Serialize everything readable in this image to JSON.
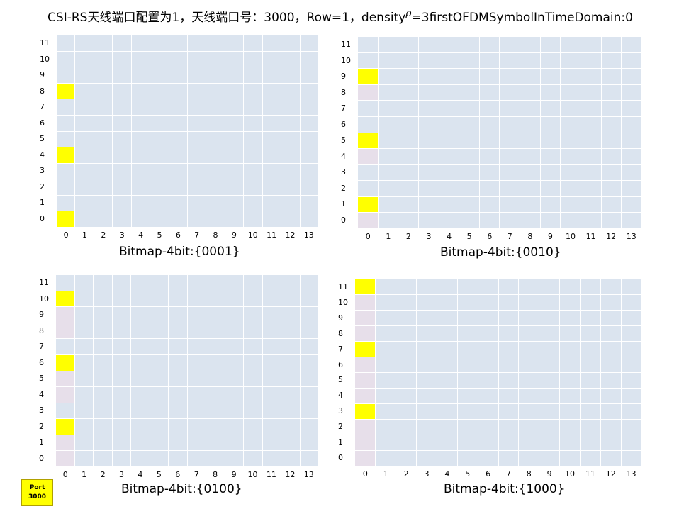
{
  "title": {
    "prefix": "CSI-RS天线端口配置为1，天线端口号：3000，Row=1，density",
    "rho": "ρ",
    "suffix": "=3firstOFDMSymbolInTimeDomain:0"
  },
  "port_badge": {
    "line1": "Port",
    "line2": "3000"
  },
  "colors": {
    "cell": "#dbe4ef",
    "highlight": "#ffff00",
    "shade": "#e7dfea"
  },
  "x_ticks": [
    "0",
    "1",
    "2",
    "3",
    "4",
    "5",
    "6",
    "7",
    "8",
    "9",
    "10",
    "11",
    "12",
    "13"
  ],
  "y_ticks": [
    "0",
    "1",
    "2",
    "3",
    "4",
    "5",
    "6",
    "7",
    "8",
    "9",
    "10",
    "11"
  ],
  "panels": [
    {
      "caption": "Bitmap-4bit:{0001}",
      "highlight_rows": [
        0,
        4,
        8
      ],
      "shaded_rows": []
    },
    {
      "caption": "Bitmap-4bit:{0010}",
      "highlight_rows": [
        1,
        5,
        9
      ],
      "shaded_rows": [
        0,
        4,
        8
      ]
    },
    {
      "caption": "Bitmap-4bit:{0100}",
      "highlight_rows": [
        2,
        6,
        10
      ],
      "shaded_rows": [
        0,
        1,
        4,
        5,
        8,
        9
      ]
    },
    {
      "caption": "Bitmap-4bit:{1000}",
      "highlight_rows": [
        3,
        7,
        11
      ],
      "shaded_rows": [
        0,
        1,
        2,
        4,
        5,
        6,
        8,
        9,
        10
      ]
    }
  ]
}
